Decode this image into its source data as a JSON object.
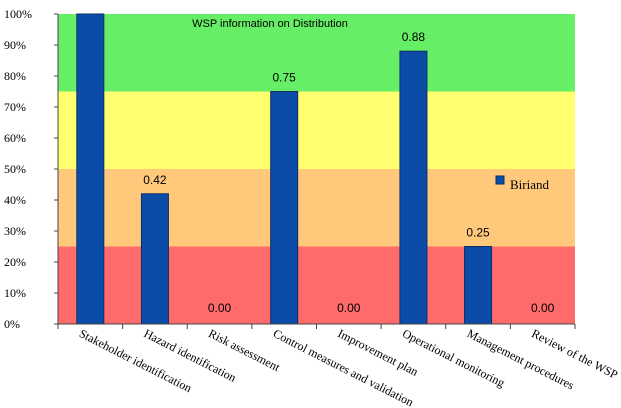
{
  "chart_data": {
    "type": "bar",
    "title": "WSP information on Distribution",
    "categories": [
      "Stakeholder identification",
      "Hazard identification",
      "Risk assessment",
      "Control measures and validation",
      "Improvement plan",
      "Operational monitoring",
      "Management procedures",
      "Review of the WSP"
    ],
    "series": [
      {
        "name": "Biriand",
        "values": [
          1.0,
          0.42,
          0.0,
          0.75,
          0.0,
          0.88,
          0.25,
          0.0
        ],
        "color": "#0B4CA8"
      }
    ],
    "data_labels": [
      "",
      "0.42",
      "0.00",
      "0.75",
      "0.00",
      "0.88",
      "0.25",
      "0.00"
    ],
    "ylim": [
      0,
      1
    ],
    "yticks": [
      "0%",
      "10%",
      "20%",
      "30%",
      "40%",
      "50%",
      "60%",
      "70%",
      "80%",
      "90%",
      "100%"
    ],
    "bands": [
      {
        "from": 0.0,
        "to": 0.25,
        "color": "#FF6B6B"
      },
      {
        "from": 0.25,
        "to": 0.5,
        "color": "#FFC87A"
      },
      {
        "from": 0.5,
        "to": 0.75,
        "color": "#FFFF70"
      },
      {
        "from": 0.75,
        "to": 1.0,
        "color": "#66EE66"
      }
    ],
    "legend_position": "right",
    "grid": false
  }
}
